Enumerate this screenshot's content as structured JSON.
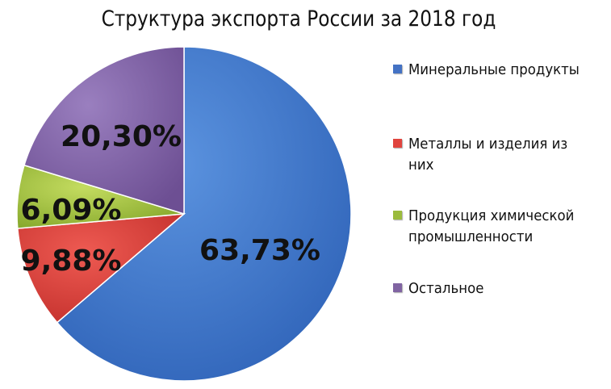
{
  "chart_data": {
    "type": "pie",
    "title": "Структура экспорта России за 2018 год",
    "categories": [
      "Минеральные продукты",
      "Металлы и изделия из них",
      "Продукция химической промышленности",
      "Остальное"
    ],
    "values": [
      63.73,
      9.88,
      6.09,
      20.3
    ],
    "value_labels": [
      "63,73%",
      "9,88%",
      "6,09%",
      "20,30%"
    ],
    "colors": [
      "#4472C4",
      "#E0443E",
      "#9BBB3C",
      "#8064A2"
    ],
    "legend_position": "right"
  }
}
